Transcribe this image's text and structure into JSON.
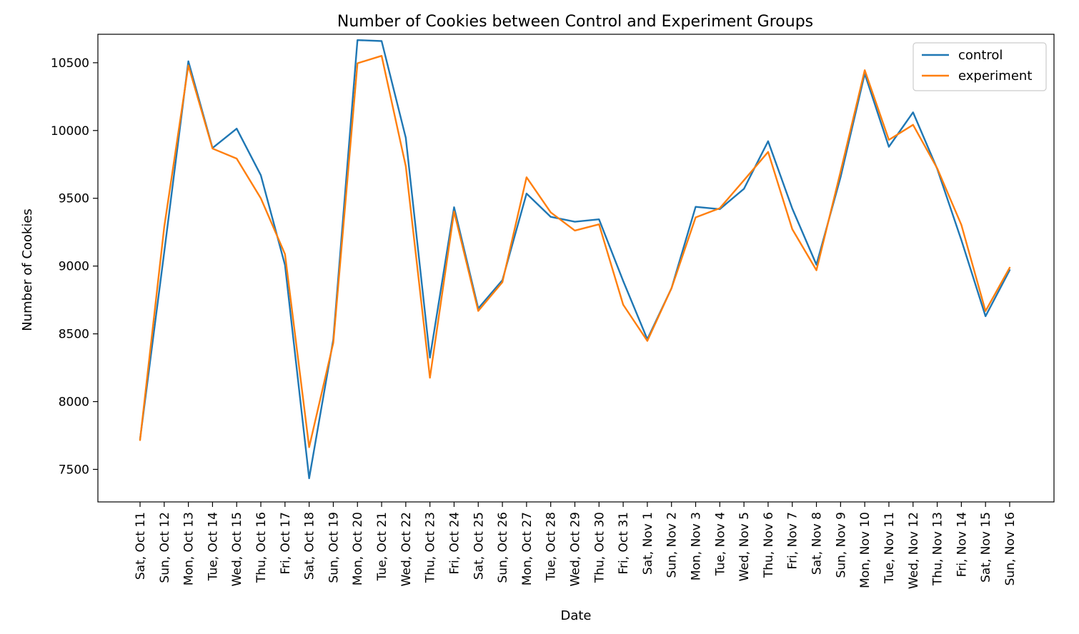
{
  "chart_data": {
    "type": "line",
    "title": "Number of Cookies between Control and Experiment Groups",
    "xlabel": "Date",
    "ylabel": "Number of Cookies",
    "ylim": [
      7260,
      10710
    ],
    "yticks": [
      7500,
      8000,
      8500,
      9000,
      9500,
      10000,
      10500
    ],
    "grid": false,
    "legend_position": "top-right",
    "categories": [
      "Sat, Oct 11",
      "Sun, Oct 12",
      "Mon, Oct 13",
      "Tue, Oct 14",
      "Wed, Oct 15",
      "Thu, Oct 16",
      "Fri, Oct 17",
      "Sat, Oct 18",
      "Sun, Oct 19",
      "Mon, Oct 20",
      "Tue, Oct 21",
      "Wed, Oct 22",
      "Thu, Oct 23",
      "Fri, Oct 24",
      "Sat, Oct 25",
      "Sun, Oct 26",
      "Mon, Oct 27",
      "Tue, Oct 28",
      "Wed, Oct 29",
      "Thu, Oct 30",
      "Fri, Oct 31",
      "Sat, Nov 1",
      "Sun, Nov 2",
      "Mon, Nov 3",
      "Tue, Nov 4",
      "Wed, Nov 5",
      "Thu, Nov 6",
      "Fri, Nov 7",
      "Sat, Nov 8",
      "Sun, Nov 9",
      "Mon, Nov 10",
      "Tue, Nov 11",
      "Wed, Nov 12",
      "Thu, Nov 13",
      "Fri, Nov 14",
      "Sat, Nov 15",
      "Sun, Nov 16"
    ],
    "series": [
      {
        "name": "control",
        "color": "#1f77b4",
        "values": [
          7723,
          9102,
          10511,
          9871,
          10014,
          9670,
          9008,
          7434,
          8459,
          10667,
          10660,
          9947,
          8324,
          9434,
          8687,
          8896,
          9535,
          9363,
          9327,
          9345,
          8890,
          8460,
          8836,
          9437,
          9420,
          9570,
          9921,
          9424,
          9010,
          9656,
          10419,
          9880,
          10134,
          9717,
          9192,
          8630,
          8970
        ]
      },
      {
        "name": "experiment",
        "color": "#ff7f0e",
        "values": [
          7716,
          9288,
          10480,
          9867,
          9793,
          9500,
          9088,
          7664,
          8434,
          10496,
          10551,
          9737,
          8176,
          9402,
          8669,
          8881,
          9655,
          9396,
          9262,
          9308,
          8715,
          8448,
          8836,
          9359,
          9427,
          9633,
          9842,
          9272,
          8969,
          9697,
          10445,
          9931,
          10042,
          9721,
          9304,
          8668,
          8988
        ]
      }
    ]
  }
}
